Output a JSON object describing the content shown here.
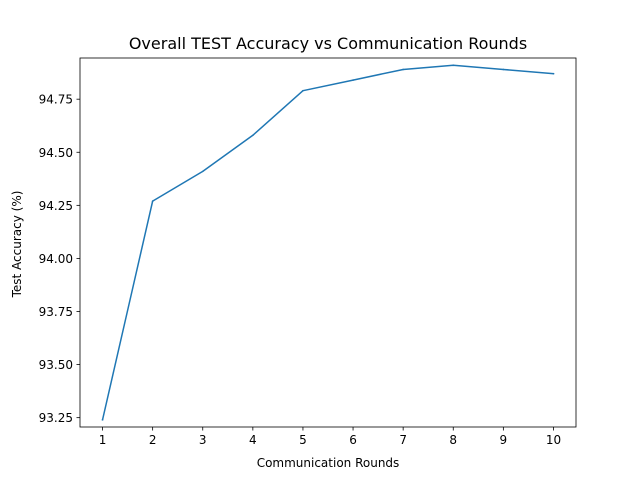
{
  "chart_data": {
    "type": "line",
    "title": "Overall TEST Accuracy vs Communication Rounds",
    "xlabel": "Communication Rounds",
    "ylabel": "Test Accuracy (%)",
    "x": [
      1,
      2,
      3,
      4,
      5,
      6,
      7,
      8,
      9,
      10
    ],
    "series": [
      {
        "values": [
          93.24,
          94.27,
          94.41,
          94.58,
          94.79,
          94.84,
          94.89,
          94.91,
          94.89,
          94.87
        ],
        "color": "#1f77b4"
      }
    ],
    "xlim": [
      0.55,
      10.45
    ],
    "ylim": [
      93.206,
      94.944
    ],
    "xticks": [
      1,
      2,
      3,
      4,
      5,
      6,
      7,
      8,
      9,
      10
    ],
    "xtick_labels": [
      "1",
      "2",
      "3",
      "4",
      "5",
      "6",
      "7",
      "8",
      "9",
      "10"
    ],
    "yticks": [
      93.25,
      93.5,
      93.75,
      94.0,
      94.25,
      94.5,
      94.75
    ],
    "ytick_labels": [
      "93.25",
      "93.50",
      "93.75",
      "94.00",
      "94.25",
      "94.50",
      "94.75"
    ],
    "grid": false,
    "legend": "none"
  }
}
